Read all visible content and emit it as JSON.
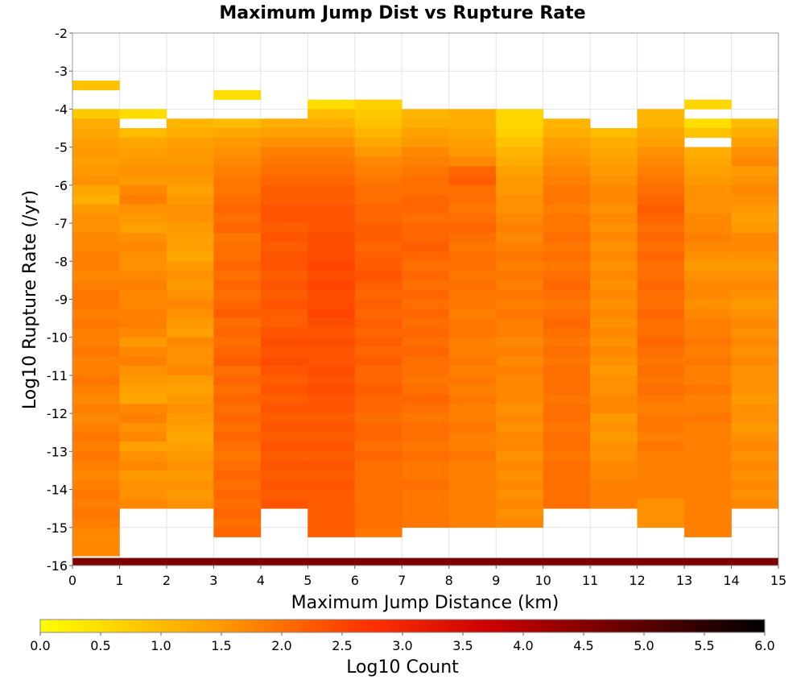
{
  "chart_data": {
    "type": "heatmap",
    "title": "Maximum Jump Dist vs Rupture Rate",
    "xlabel": "Maximum Jump Distance (km)",
    "ylabel": "Log10 Rupture Rate (/yr)",
    "xlim": [
      0,
      15
    ],
    "ylim": [
      -16,
      -2
    ],
    "x_ticks": [
      "0",
      "1",
      "2",
      "3",
      "4",
      "5",
      "6",
      "7",
      "8",
      "9",
      "10",
      "11",
      "12",
      "13",
      "14",
      "15"
    ],
    "y_ticks": [
      "-2",
      "-3",
      "-4",
      "-5",
      "-6",
      "-7",
      "-8",
      "-9",
      "-10",
      "-11",
      "-12",
      "-13",
      "-14",
      "-15",
      "-16"
    ],
    "grid": true,
    "colorbar": {
      "label": "Log10 Count",
      "range": [
        0,
        6
      ],
      "ticks": [
        "0.0",
        "0.5",
        "1.0",
        "1.5",
        "2.0",
        "2.5",
        "3.0",
        "3.5",
        "4.0",
        "4.5",
        "5.0",
        "5.5",
        "6.0"
      ],
      "stops": [
        "#ffff00",
        "#ff9900",
        "#ff3300",
        "#cc0000",
        "#000000"
      ]
    },
    "x_bin_width": 1,
    "y_bin_height": 0.25,
    "columns": [
      {
        "x": 0,
        "top": -3.25,
        "values": [
          0.9,
          0.0,
          0.0,
          0.8,
          1.2,
          1.3,
          1.4,
          1.5,
          1.4,
          1.5,
          1.6,
          1.3,
          1.2,
          1.5,
          1.6,
          1.6,
          1.7,
          1.7,
          1.8,
          1.8,
          1.7,
          1.8,
          1.9,
          1.9,
          1.8,
          1.9,
          1.8,
          1.8,
          1.9,
          1.8,
          1.8,
          1.9,
          1.8,
          1.7,
          1.8,
          1.7,
          1.8,
          1.9,
          1.8,
          1.9,
          1.8,
          1.7,
          1.8,
          1.9,
          1.8,
          1.9,
          1.8,
          1.7,
          1.7,
          1.7
        ]
      },
      {
        "x": 1,
        "top": -4.0,
        "values": [
          0.5,
          0.0,
          1.0,
          1.3,
          1.4,
          1.5,
          1.6,
          1.5,
          1.7,
          1.8,
          1.6,
          1.5,
          1.4,
          1.6,
          1.7,
          1.6,
          1.6,
          1.7,
          1.8,
          1.7,
          1.7,
          1.8,
          1.8,
          1.7,
          1.5,
          1.7,
          1.8,
          1.6,
          1.5,
          1.4,
          1.3,
          1.7,
          1.8,
          1.6,
          1.7,
          1.4,
          1.6,
          1.7,
          1.5,
          1.6,
          1.6,
          1.7
        ]
      },
      {
        "x": 2,
        "top": -4.25,
        "values": [
          1.1,
          1.2,
          1.4,
          1.5,
          1.5,
          1.6,
          1.5,
          1.4,
          1.5,
          1.6,
          1.6,
          1.5,
          1.4,
          1.4,
          1.3,
          1.5,
          1.6,
          1.5,
          1.6,
          1.7,
          1.6,
          1.5,
          1.4,
          1.7,
          1.6,
          1.6,
          1.7,
          1.5,
          1.4,
          1.5,
          1.6,
          1.5,
          1.4,
          1.3,
          1.4,
          1.5,
          1.6,
          1.5,
          1.6,
          1.5,
          1.6
        ]
      },
      {
        "x": 3,
        "top": -3.5,
        "values": [
          0.5,
          0.0,
          0.0,
          1.0,
          1.3,
          1.5,
          1.6,
          1.7,
          1.8,
          1.9,
          1.9,
          2.0,
          2.1,
          2.0,
          2.1,
          1.9,
          2.0,
          2.0,
          2.1,
          2.0,
          2.1,
          2.0,
          2.1,
          2.2,
          2.0,
          2.1,
          2.0,
          2.1,
          2.2,
          2.0,
          2.1,
          2.0,
          2.1,
          2.0,
          2.1,
          2.0,
          2.1,
          2.0,
          1.9,
          2.0,
          2.1,
          2.0,
          2.1,
          2.0,
          2.1,
          2.0,
          2.1
        ]
      },
      {
        "x": 4,
        "top": -4.25,
        "values": [
          1.2,
          1.4,
          1.6,
          1.8,
          1.9,
          2.0,
          2.1,
          2.2,
          2.2,
          2.3,
          2.3,
          2.2,
          2.3,
          2.2,
          2.3,
          2.3,
          2.2,
          2.3,
          2.2,
          2.3,
          2.2,
          2.2,
          2.3,
          2.4,
          2.3,
          2.4,
          2.3,
          2.2,
          2.3,
          2.2,
          2.3,
          2.2,
          2.3,
          2.2,
          2.3,
          2.2,
          2.3,
          2.2,
          2.3,
          2.2,
          2.3
        ]
      },
      {
        "x": 5,
        "top": -3.75,
        "values": [
          0.5,
          1.0,
          1.2,
          1.4,
          1.6,
          1.8,
          1.9,
          2.0,
          2.1,
          2.2,
          2.2,
          2.3,
          2.3,
          2.3,
          2.4,
          2.4,
          2.4,
          2.5,
          2.4,
          2.5,
          2.4,
          2.4,
          2.5,
          2.4,
          2.3,
          2.4,
          2.3,
          2.3,
          2.4,
          2.3,
          2.4,
          2.3,
          2.3,
          2.2,
          2.3,
          2.2,
          2.3,
          2.2,
          2.3,
          2.2,
          2.3,
          2.2,
          2.2,
          2.2,
          2.2,
          2.2
        ]
      },
      {
        "x": 6,
        "top": -3.75,
        "values": [
          0.7,
          0.8,
          0.9,
          1.1,
          1.3,
          1.5,
          1.7,
          1.8,
          1.9,
          2.0,
          2.0,
          2.1,
          2.1,
          2.2,
          2.2,
          2.1,
          2.2,
          2.2,
          2.3,
          2.2,
          2.1,
          2.2,
          2.1,
          2.2,
          2.1,
          2.2,
          2.1,
          2.2,
          2.1,
          2.1,
          2.2,
          2.1,
          2.1,
          2.0,
          2.1,
          2.1,
          2.0,
          2.1,
          2.0,
          2.0,
          2.0,
          2.0,
          2.0,
          2.0,
          2.0,
          1.9
        ]
      },
      {
        "x": 7,
        "top": -4.0,
        "values": [
          1.1,
          1.2,
          1.4,
          1.5,
          1.7,
          1.8,
          1.9,
          2.0,
          2.0,
          2.1,
          2.1,
          2.0,
          2.1,
          2.1,
          2.2,
          2.1,
          2.0,
          2.1,
          2.0,
          2.1,
          2.0,
          2.1,
          2.0,
          2.1,
          2.0,
          2.1,
          2.0,
          2.0,
          1.9,
          2.0,
          2.1,
          2.0,
          1.9,
          2.0,
          2.0,
          1.9,
          2.0,
          1.9,
          1.9,
          2.0,
          1.9,
          1.9,
          1.9,
          1.9
        ]
      },
      {
        "x": 8,
        "top": -4.0,
        "values": [
          1.2,
          1.2,
          1.3,
          1.4,
          1.5,
          1.7,
          2.1,
          2.2,
          2.0,
          2.0,
          1.9,
          2.0,
          2.1,
          2.0,
          1.9,
          2.0,
          2.0,
          1.9,
          2.0,
          1.9,
          1.9,
          1.8,
          1.9,
          1.9,
          1.8,
          1.8,
          1.9,
          1.8,
          1.9,
          1.8,
          1.9,
          1.8,
          1.8,
          1.9,
          1.8,
          1.8,
          1.9,
          1.8,
          1.8,
          1.8,
          1.8,
          1.8,
          1.8,
          1.8
        ]
      },
      {
        "x": 9,
        "top": -4.0,
        "values": [
          0.6,
          0.6,
          0.7,
          0.9,
          1.1,
          1.2,
          1.4,
          1.5,
          1.5,
          1.6,
          1.6,
          1.7,
          1.8,
          1.7,
          1.8,
          1.9,
          1.8,
          1.9,
          1.8,
          1.9,
          1.8,
          1.9,
          1.8,
          1.8,
          1.7,
          1.8,
          1.7,
          1.8,
          1.7,
          1.7,
          1.7,
          1.6,
          1.7,
          1.6,
          1.7,
          1.7,
          1.6,
          1.7,
          1.6,
          1.7,
          1.6,
          1.7,
          1.6,
          1.7
        ]
      },
      {
        "x": 10,
        "top": -4.25,
        "values": [
          1.1,
          1.2,
          1.4,
          1.5,
          1.6,
          1.7,
          1.8,
          1.9,
          1.9,
          1.8,
          1.9,
          1.9,
          2.0,
          1.9,
          2.0,
          1.9,
          2.0,
          2.1,
          2.0,
          1.9,
          2.0,
          2.1,
          2.0,
          1.9,
          2.0,
          1.9,
          2.0,
          2.0,
          2.0,
          1.9,
          2.0,
          2.0,
          1.9,
          2.0,
          2.0,
          1.9,
          2.0,
          2.0,
          2.0,
          2.0,
          2.0
        ]
      },
      {
        "x": 11,
        "top": -4.5,
        "values": [
          1.0,
          1.2,
          1.3,
          1.4,
          1.5,
          1.6,
          1.7,
          1.7,
          1.6,
          1.7,
          1.6,
          1.7,
          1.6,
          1.7,
          1.6,
          1.7,
          1.6,
          1.7,
          1.6,
          1.7,
          1.6,
          1.7,
          1.6,
          1.7,
          1.6,
          1.5,
          1.6,
          1.6,
          1.7,
          1.7,
          1.5,
          1.6,
          1.5,
          1.6,
          1.6,
          1.7,
          1.7,
          1.8,
          1.8,
          1.8
        ]
      },
      {
        "x": 12,
        "top": -4.0,
        "values": [
          1.1,
          1.1,
          1.3,
          1.4,
          1.6,
          1.7,
          1.8,
          1.9,
          2.0,
          2.1,
          2.2,
          2.1,
          2.0,
          2.1,
          2.0,
          2.1,
          2.0,
          2.0,
          2.1,
          2.0,
          2.0,
          2.1,
          2.0,
          2.0,
          2.1,
          2.0,
          1.9,
          2.0,
          1.9,
          2.0,
          1.9,
          1.8,
          1.9,
          1.9,
          1.8,
          1.9,
          1.8,
          1.8,
          1.8,
          1.8,
          1.8,
          1.6,
          1.6,
          1.6
        ]
      },
      {
        "x": 13,
        "top": -3.75,
        "values": [
          0.6,
          0.0,
          0.5,
          0.9,
          0.0,
          1.2,
          1.3,
          1.4,
          1.5,
          1.6,
          1.6,
          1.6,
          1.7,
          1.7,
          1.8,
          1.7,
          1.6,
          1.5,
          1.6,
          1.7,
          1.7,
          1.6,
          1.7,
          1.8,
          1.8,
          1.9,
          1.8,
          1.9,
          1.8,
          1.8,
          1.9,
          1.8,
          1.8,
          1.9,
          1.8,
          1.8,
          1.8,
          1.8,
          1.8,
          1.8,
          1.8,
          1.8,
          1.8,
          1.8,
          1.8,
          1.8
        ]
      },
      {
        "x": 14,
        "top": -4.25,
        "values": [
          1.0,
          1.2,
          1.4,
          1.6,
          1.7,
          1.5,
          1.6,
          1.7,
          1.6,
          1.5,
          1.4,
          1.5,
          1.7,
          1.7,
          1.6,
          1.5,
          1.6,
          1.7,
          1.6,
          1.5,
          1.6,
          1.7,
          1.6,
          1.7,
          1.6,
          1.7,
          1.6,
          1.6,
          1.6,
          1.5,
          1.6,
          1.6,
          1.5,
          1.6,
          1.7,
          1.6,
          1.7,
          1.6,
          1.7,
          1.6,
          1.7
        ]
      }
    ],
    "bottom_band": {
      "y_from": -16.0,
      "y_to": -15.8,
      "value": 4.6
    }
  }
}
